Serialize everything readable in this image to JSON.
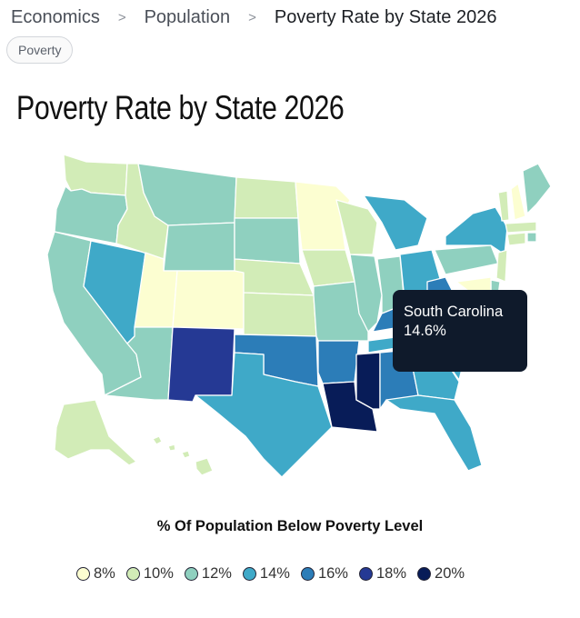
{
  "breadcrumb": {
    "items": [
      "Economics",
      "Population",
      "Poverty Rate by State 2026"
    ],
    "separator": ">"
  },
  "tag": {
    "label": "Poverty"
  },
  "title": "Poverty Rate by State 2026",
  "tooltip": {
    "state": "South Carolina",
    "value": "14.6%"
  },
  "legend": {
    "title": "% Of Population Below Poverty Level",
    "items": [
      {
        "label": "8%",
        "color": "#fcfed1"
      },
      {
        "label": "10%",
        "color": "#d2ecb7"
      },
      {
        "label": "12%",
        "color": "#8fd0bf"
      },
      {
        "label": "14%",
        "color": "#3fa9c8"
      },
      {
        "label": "16%",
        "color": "#2c7db8"
      },
      {
        "label": "18%",
        "color": "#253994"
      },
      {
        "label": "20%",
        "color": "#081c58"
      }
    ]
  },
  "colors": {
    "tooltip_background": "#0f1a2b",
    "state_border": "#ffffff"
  },
  "map_data": {
    "highlighted_state": "South Carolina",
    "state_buckets": {
      "Washington": 1,
      "Oregon": 2,
      "California": 2,
      "Nevada": 3,
      "Idaho": 1,
      "Montana": 2,
      "Wyoming": 2,
      "Utah": 0,
      "Colorado": 0,
      "Arizona": 2,
      "New Mexico": 5,
      "North Dakota": 1,
      "South Dakota": 2,
      "Nebraska": 1,
      "Kansas": 1,
      "Oklahoma": 4,
      "Texas": 3,
      "Minnesota": 0,
      "Iowa": 1,
      "Missouri": 2,
      "Arkansas": 4,
      "Louisiana": 6,
      "Wisconsin": 1,
      "Illinois": 2,
      "Michigan": 3,
      "Indiana": 2,
      "Ohio": 3,
      "Kentucky": 4,
      "Tennessee": 3,
      "Mississippi": 6,
      "Alabama": 4,
      "Georgia": 3,
      "Florida": 3,
      "South Carolina": 3,
      "North Carolina": 3,
      "Virginia": 1,
      "West Virginia": 4,
      "Pennsylvania": 2,
      "New York": 3,
      "Vermont": 1,
      "New Hampshire": 0,
      "Maine": 2,
      "Massachusetts": 1,
      "Connecticut": 1,
      "Rhode Island": 2,
      "New Jersey": 1,
      "Delaware": 2,
      "Maryland": 0,
      "Alaska": 1,
      "Hawaii": 1
    }
  }
}
